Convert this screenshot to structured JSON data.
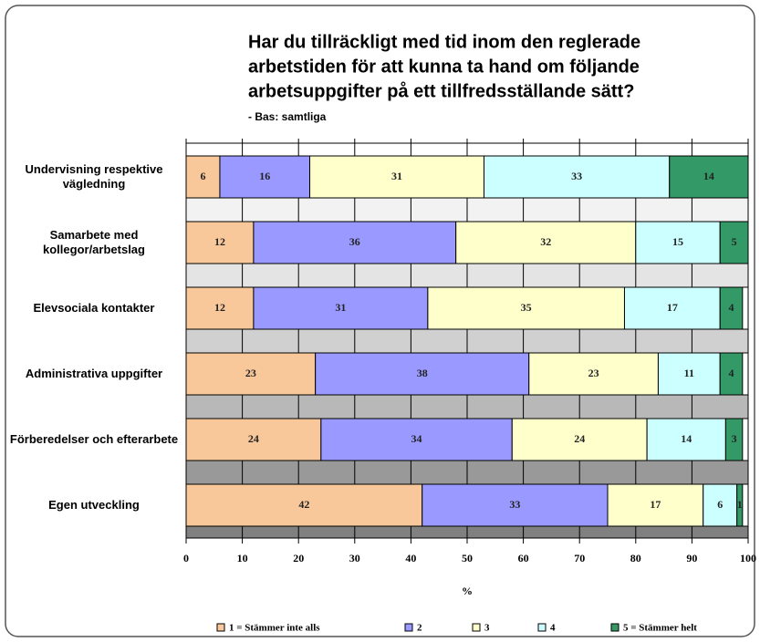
{
  "chart_data": {
    "type": "stacked_barh",
    "title": [
      "Har du tillräckligt med tid inom den reglerade",
      "arbetstiden för att kunna ta hand om följande",
      "arbetsuppgifter på ett tillfredsställande sätt?"
    ],
    "subtitle": "- Bas: samtliga",
    "x_label": "%",
    "categories": [
      "Undervisning respektive vägledning",
      "Samarbete med kollegor/arbetslag",
      "Elevsociala kontakter",
      "Administrativa uppgifter",
      "Förberedelser och efterarbete",
      "Egen utveckling"
    ],
    "series": [
      {
        "name": "1 = Stämmer inte alls",
        "color": "#f9c89a",
        "values": [
          6,
          12,
          12,
          23,
          24,
          42
        ]
      },
      {
        "name": "2",
        "color": "#9999ff",
        "values": [
          16,
          36,
          31,
          38,
          34,
          33
        ]
      },
      {
        "name": "3",
        "color": "#ffffcc",
        "values": [
          31,
          32,
          35,
          23,
          24,
          17
        ]
      },
      {
        "name": "4",
        "color": "#ccffff",
        "values": [
          33,
          15,
          17,
          11,
          14,
          6
        ]
      },
      {
        "name": "5 = Stämmer helt",
        "color": "#339966",
        "values": [
          14,
          5,
          4,
          4,
          3,
          1
        ]
      }
    ],
    "xlim": [
      0,
      100
    ],
    "xticks": [
      0,
      10,
      20,
      30,
      40,
      50,
      60,
      70,
      80,
      90,
      100
    ],
    "grid": true,
    "legend": "bottom"
  }
}
